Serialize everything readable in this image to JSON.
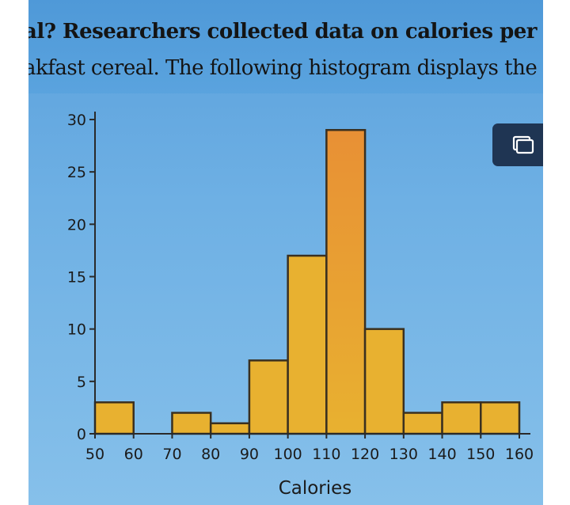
{
  "question_text": {
    "line1": "al? Researchers collected data on calories per servi",
    "line2": "akfast cereal. The following histogram displays the"
  },
  "expand_button": {
    "icon": "expand-window-icon"
  },
  "chart_data": {
    "type": "bar",
    "subtype": "histogram",
    "bin_edges": [
      50,
      60,
      70,
      80,
      90,
      100,
      110,
      120,
      130,
      140,
      150,
      160
    ],
    "values": [
      3,
      0,
      2,
      1,
      7,
      17,
      29,
      10,
      2,
      3,
      3
    ],
    "xlabel": "Calories",
    "ylabel": "",
    "xlim": [
      50,
      160
    ],
    "ylim": [
      0,
      30
    ],
    "yticks": [
      0,
      5,
      10,
      15,
      20,
      25,
      30
    ],
    "xticks": [
      50,
      60,
      70,
      80,
      90,
      100,
      110,
      120,
      130,
      140,
      150,
      160
    ],
    "grid": false,
    "bar_color": "#e8b130",
    "highlight_color": "#e89035"
  }
}
